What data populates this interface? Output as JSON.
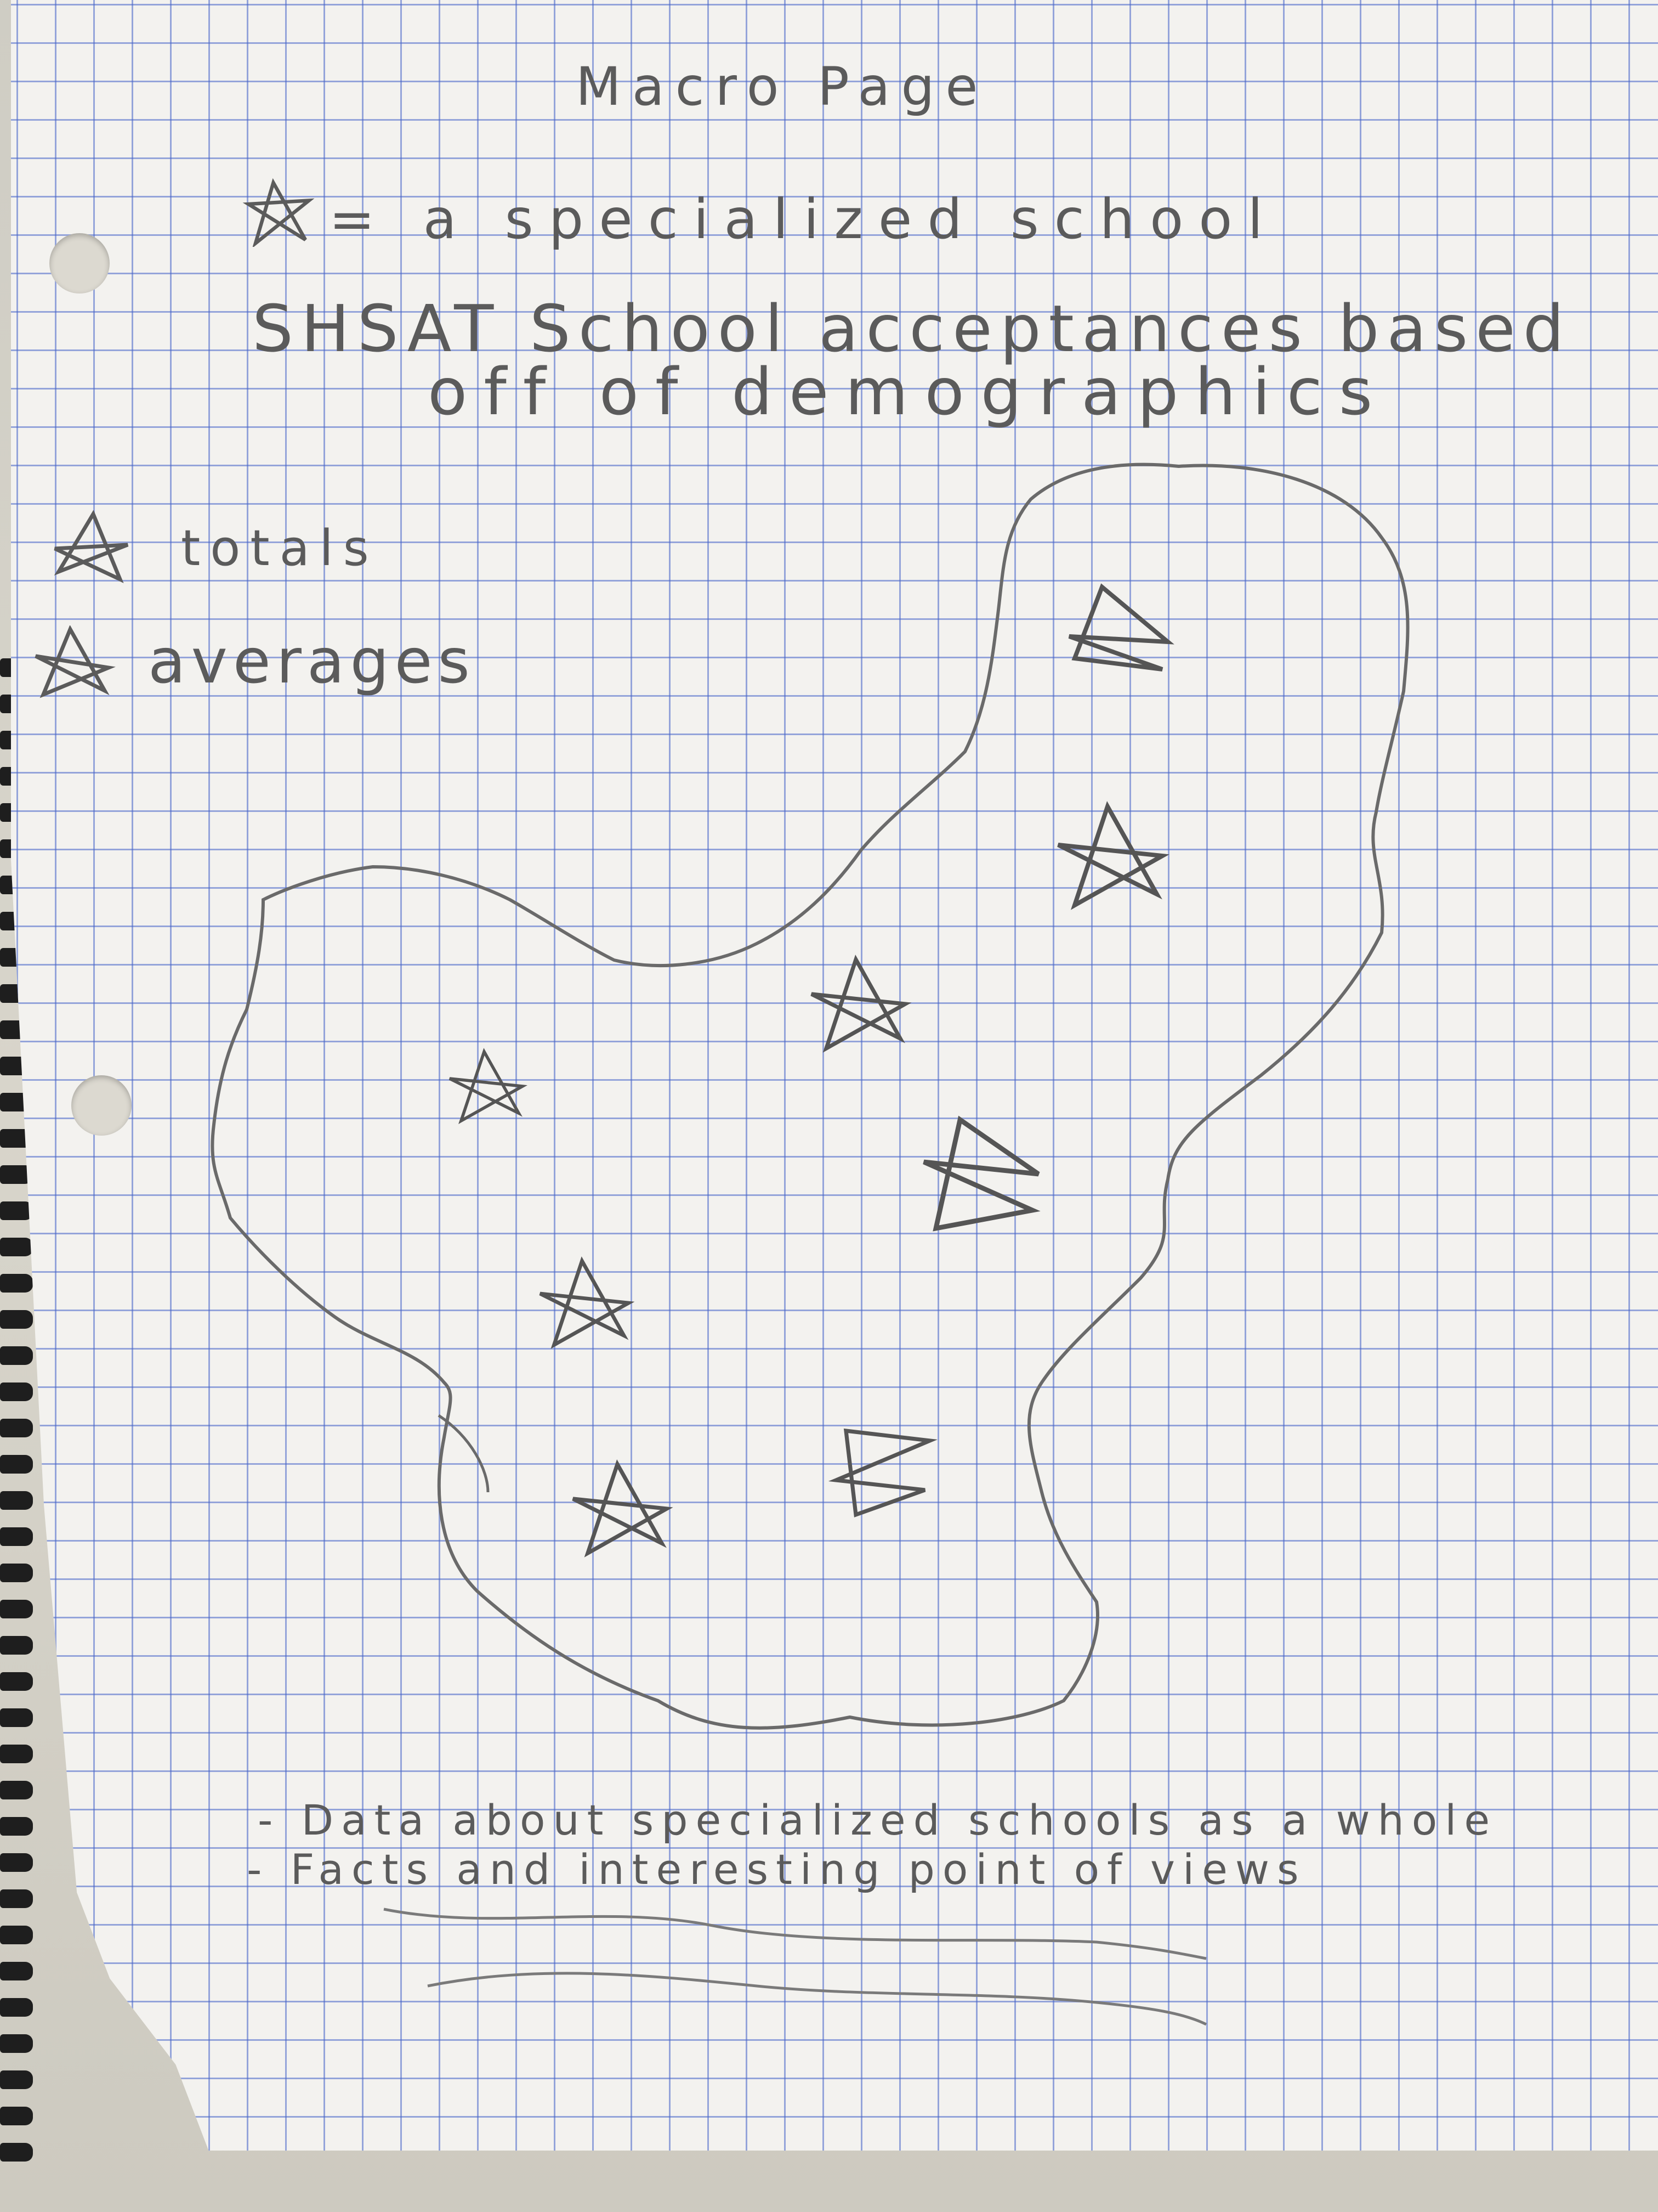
{
  "title": "Macro Page",
  "legend": {
    "star_meaning": "= a specialized school",
    "totals": "totals",
    "averages": "averages"
  },
  "heading": {
    "line1": "SHSAT School acceptances based",
    "line2": "off of demographics"
  },
  "notes": [
    "- Data about specialized schools as a whole",
    "- Facts and interesting point of views"
  ],
  "icons": {
    "school_marker": "star-icon",
    "map": "nyc-map-outline"
  },
  "colors": {
    "pencil": "#5b5b5b",
    "grid": "#4664c8",
    "paper": "#f3f2ef"
  }
}
